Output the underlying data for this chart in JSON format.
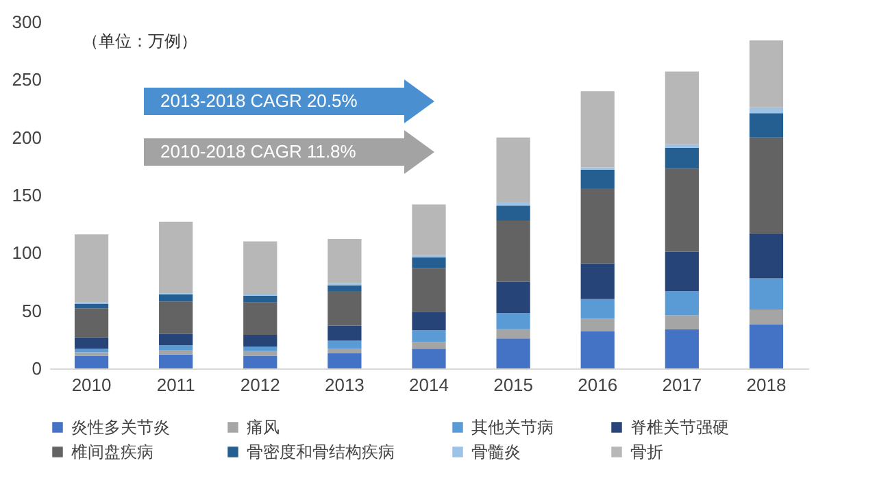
{
  "chart_data": {
    "type": "bar",
    "stacked": true,
    "legend": "bottom",
    "grid": false,
    "categories": [
      "2010",
      "2011",
      "2012",
      "2013",
      "2014",
      "2015",
      "2016",
      "2017",
      "2018"
    ],
    "ylim": [
      0,
      300
    ],
    "yticks": [
      0,
      50,
      100,
      150,
      200,
      250,
      300
    ],
    "annotations": [
      "（单位：万例）",
      "2013-2018  CAGR  20.5%",
      "2010-2018  CAGR  11.8%"
    ],
    "series": [
      {
        "name": "炎性多关节炎",
        "color": "#4472c4",
        "values": [
          11,
          12,
          11,
          13,
          17,
          26,
          32,
          34,
          38
        ]
      },
      {
        "name": "痛风",
        "color": "#a5a5a5",
        "values": [
          3,
          4,
          4,
          4,
          6,
          8,
          11,
          12,
          13
        ]
      },
      {
        "name": "其他关节病",
        "color": "#5b9bd5",
        "values": [
          3,
          4,
          4,
          7,
          10,
          14,
          17,
          21,
          27
        ]
      },
      {
        "name": "脊椎关节强硬",
        "color": "#264478",
        "values": [
          10,
          10,
          10,
          13,
          16,
          27,
          31,
          34,
          39
        ]
      },
      {
        "name": "椎间盘疾病",
        "color": "#636363",
        "values": [
          25,
          28,
          28,
          30,
          38,
          53,
          65,
          72,
          83
        ]
      },
      {
        "name": "骨密度和骨结构疾病",
        "color": "#255e91",
        "values": [
          4,
          6,
          6,
          5,
          9,
          13,
          16,
          18,
          21
        ]
      },
      {
        "name": "骨髓炎",
        "color": "#9dc3e6",
        "values": [
          1,
          1,
          1,
          2,
          2,
          3,
          2,
          3,
          5
        ]
      },
      {
        "name": "骨折",
        "color": "#b7b7b7",
        "values": [
          59,
          62,
          46,
          38,
          44,
          56,
          66,
          63,
          58
        ]
      }
    ]
  }
}
